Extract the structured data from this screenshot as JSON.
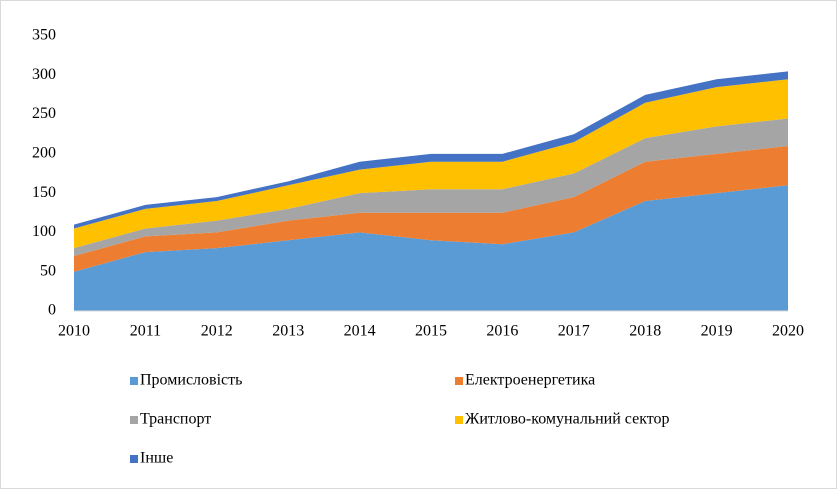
{
  "chart_data": {
    "type": "stacked_area",
    "categories": [
      "2010",
      "2011",
      "2012",
      "2013",
      "2014",
      "2015",
      "2016",
      "2017",
      "2018",
      "2019",
      "2020"
    ],
    "series": [
      {
        "name": "Промисловість",
        "color": "#5b9bd5",
        "values": [
          50,
          75,
          80,
          90,
          100,
          90,
          85,
          100,
          140,
          150,
          160
        ]
      },
      {
        "name": "Електроенергетика",
        "color": "#ed7d31",
        "values": [
          20,
          20,
          20,
          25,
          25,
          35,
          40,
          45,
          50,
          50,
          50
        ]
      },
      {
        "name": "Транспорт",
        "color": "#a5a5a5",
        "values": [
          10,
          10,
          15,
          15,
          25,
          30,
          30,
          30,
          30,
          35,
          35
        ]
      },
      {
        "name": "Житлово-комунальний сектор",
        "color": "#ffc000",
        "values": [
          25,
          25,
          25,
          30,
          30,
          35,
          35,
          40,
          45,
          50,
          50
        ]
      },
      {
        "name": "Інше",
        "color": "#4472c4",
        "values": [
          5,
          5,
          5,
          5,
          10,
          10,
          10,
          10,
          10,
          10,
          10
        ]
      }
    ],
    "ylim": [
      0,
      350
    ],
    "yticks": [
      0,
      50,
      100,
      150,
      200,
      250,
      300,
      350
    ],
    "legend": "bottom"
  }
}
